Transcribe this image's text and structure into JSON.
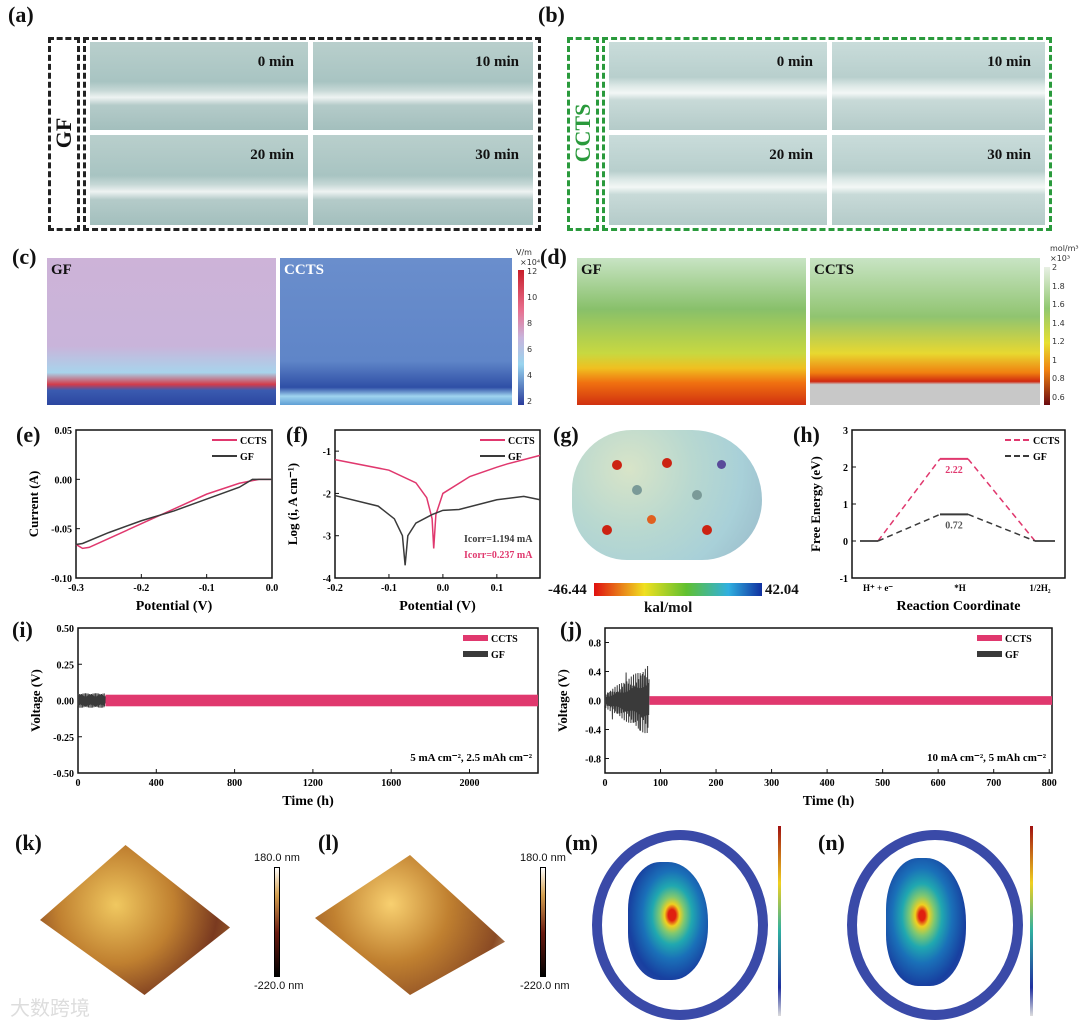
{
  "panels": {
    "a": "(a)",
    "b": "(b)",
    "c": "(c)",
    "d": "(d)",
    "e": "(e)",
    "f": "(f)",
    "g": "(g)",
    "h": "(h)",
    "i": "(i)",
    "j": "(j)",
    "k": "(k)",
    "l": "(l)",
    "m": "(m)",
    "n": "(n)"
  },
  "row_a": {
    "sample": "GF",
    "times": [
      "0 min",
      "10 min",
      "20 min",
      "30 min"
    ]
  },
  "row_b": {
    "sample": "CCTS",
    "times": [
      "0 min",
      "10 min",
      "20 min",
      "30 min"
    ]
  },
  "sim_c": {
    "left": "GF",
    "right": "CCTS",
    "unit": "V/m",
    "scale": "×10⁴",
    "ticks": [
      "12",
      "10",
      "8",
      "6",
      "4",
      "2"
    ]
  },
  "sim_d": {
    "left": "GF",
    "right": "CCTS",
    "unit": "mol/m³",
    "scale": "×10³",
    "ticks": [
      "2",
      "1.8",
      "1.6",
      "1.4",
      "1.2",
      "1",
      "0.8",
      "0.6"
    ]
  },
  "esp": {
    "min": "-46.44",
    "max": "42.04",
    "unit": "kal/mol"
  },
  "afm": {
    "max": "180.0 nm",
    "min": "-220.0 nm"
  },
  "watermark": "大数跨境",
  "colors": {
    "ccts": "#e0386e",
    "gf": "#3a3a3a",
    "green_border": "#2a9a3c"
  },
  "chart_data": [
    {
      "id": "e",
      "type": "line",
      "xlabel": "Potential (V)",
      "ylabel": "Current (A)",
      "xlim": [
        -0.3,
        0.0
      ],
      "ylim": [
        -0.1,
        0.05
      ],
      "xticks": [
        "-0.3",
        "-0.2",
        "-0.1",
        "0.0"
      ],
      "xtickvals": [
        -0.3,
        -0.2,
        -0.1,
        0
      ],
      "yticks": [
        "0.05",
        "0.00",
        "-0.05",
        "-0.10"
      ],
      "ytickvals": [
        0.05,
        0,
        -0.05,
        -0.1
      ],
      "series": [
        {
          "name": "CCTS",
          "x": [
            -0.3,
            -0.29,
            -0.28,
            -0.25,
            -0.2,
            -0.15,
            -0.1,
            -0.05,
            -0.02,
            0
          ],
          "y": [
            -0.066,
            -0.07,
            -0.069,
            -0.06,
            -0.045,
            -0.03,
            -0.015,
            -0.004,
            0,
            0
          ]
        },
        {
          "name": "GF",
          "x": [
            -0.3,
            -0.29,
            -0.25,
            -0.2,
            -0.15,
            -0.1,
            -0.05,
            -0.03,
            0
          ],
          "y": [
            -0.066,
            -0.065,
            -0.054,
            -0.042,
            -0.032,
            -0.02,
            -0.008,
            0,
            0
          ]
        }
      ]
    },
    {
      "id": "f",
      "type": "line",
      "xlabel": "Potential (V)",
      "ylabel": "Log (i, A cm⁻¹)",
      "xlim": [
        -0.2,
        0.18
      ],
      "ylim": [
        -4,
        -0.5
      ],
      "xticks": [
        "-0.2",
        "-0.1",
        "0.0",
        "0.1"
      ],
      "xtickvals": [
        -0.2,
        -0.1,
        0,
        0.1
      ],
      "yticks": [
        "-1",
        "-2",
        "-3",
        "-4"
      ],
      "ytickvals": [
        -1,
        -2,
        -3,
        -4
      ],
      "annotations": [
        {
          "text": "Icorr=1.194 mA",
          "series": "GF"
        },
        {
          "text": "Icorr=0.237 mA",
          "series": "CCTS"
        }
      ],
      "series": [
        {
          "name": "CCTS",
          "x": [
            -0.2,
            -0.1,
            -0.05,
            -0.03,
            -0.02,
            -0.017,
            -0.013,
            0,
            0.05,
            0.1,
            0.12,
            0.15,
            0.18
          ],
          "y": [
            -1.2,
            -1.45,
            -1.75,
            -2.1,
            -2.6,
            -3.3,
            -2.5,
            -2.0,
            -1.6,
            -1.38,
            -1.3,
            -1.2,
            -1.1
          ]
        },
        {
          "name": "GF",
          "x": [
            -0.2,
            -0.12,
            -0.09,
            -0.075,
            -0.07,
            -0.065,
            -0.05,
            -0.02,
            0,
            0.03,
            0.1,
            0.15,
            0.18
          ],
          "y": [
            -2.05,
            -2.3,
            -2.6,
            -3.0,
            -3.7,
            -3.0,
            -2.7,
            -2.5,
            -2.4,
            -2.38,
            -2.15,
            -2.07,
            -2.15
          ]
        }
      ]
    },
    {
      "id": "h",
      "type": "line",
      "xlabel": "Reaction Coordinate",
      "ylabel": "Free Energy (eV)",
      "ylim": [
        -1,
        3
      ],
      "categories": [
        "H⁺ + e⁻",
        "*H",
        "1/2H₂"
      ],
      "yticks": [
        "3",
        "2",
        "1",
        "0",
        "-1"
      ],
      "ytickvals": [
        3,
        2,
        1,
        0,
        -1
      ],
      "series": [
        {
          "name": "CCTS",
          "values": [
            0,
            2.22,
            0
          ],
          "label": "2.22"
        },
        {
          "name": "GF",
          "values": [
            0,
            0.72,
            0
          ],
          "label": "0.72"
        }
      ]
    },
    {
      "id": "i",
      "type": "line",
      "xlabel": "Time (h)",
      "ylabel": "Voltage (V)",
      "xlim": [
        0,
        2350
      ],
      "ylim": [
        -0.5,
        0.5
      ],
      "xticks": [
        "0",
        "400",
        "800",
        "1200",
        "1600",
        "2000"
      ],
      "xtickvals": [
        0,
        400,
        800,
        1200,
        1600,
        2000
      ],
      "yticks": [
        "0.50",
        "0.25",
        "0.00",
        "-0.25",
        "-0.50"
      ],
      "ytickvals": [
        0.5,
        0.25,
        0,
        -0.25,
        -0.5
      ],
      "annotation": "5 mA cm⁻², 2.5 mAh cm⁻²",
      "series": [
        {
          "name": "CCTS",
          "t_start": 140,
          "t_end": 2350,
          "amplitude": 0.04
        },
        {
          "name": "GF",
          "t_start": 0,
          "t_end": 140,
          "amplitude": 0.05
        }
      ]
    },
    {
      "id": "j",
      "type": "line",
      "xlabel": "Time (h)",
      "ylabel": "Voltage (V)",
      "xlim": [
        0,
        805
      ],
      "ylim": [
        -1.0,
        1.0
      ],
      "xticks": [
        "0",
        "100",
        "200",
        "300",
        "400",
        "500",
        "600",
        "700",
        "800"
      ],
      "xtickvals": [
        0,
        100,
        200,
        300,
        400,
        500,
        600,
        700,
        800
      ],
      "yticks": [
        "0.8",
        "0.4",
        "0.0",
        "-0.4",
        "-0.8"
      ],
      "ytickvals": [
        0.8,
        0.4,
        0,
        -0.4,
        -0.8
      ],
      "annotation": "10 mA cm⁻², 5 mAh cm⁻²",
      "series": [
        {
          "name": "CCTS",
          "t_start": 80,
          "t_end": 805,
          "amplitude": 0.06
        },
        {
          "name": "GF",
          "t_start": 0,
          "t_end": 80,
          "amplitude_start": 0.1,
          "amplitude_end": 0.5
        }
      ]
    }
  ]
}
